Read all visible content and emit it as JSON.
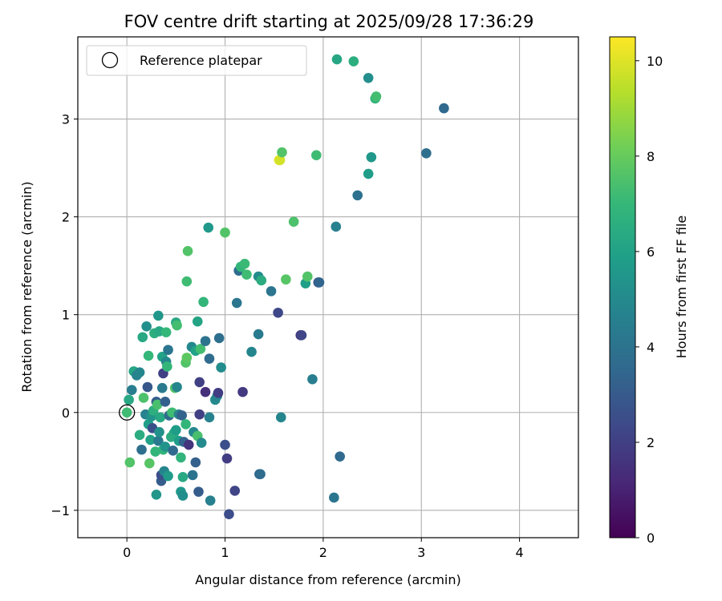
{
  "chart_data": {
    "type": "scatter",
    "title": "FOV centre drift starting at 2025/09/28 17:36:29",
    "xlabel": "Angular distance from reference (arcmin)",
    "ylabel": "Rotation from reference (arcmin)",
    "xlim": [
      -0.5,
      4.6
    ],
    "ylim": [
      -1.28,
      3.84
    ],
    "xticks": [
      0,
      1,
      2,
      3,
      4
    ],
    "yticks": [
      -1,
      0,
      1,
      2,
      3
    ],
    "xtick_labels": [
      "0",
      "1",
      "2",
      "3",
      "4"
    ],
    "ytick_labels": [
      "−1",
      "0",
      "1",
      "2",
      "3"
    ],
    "grid": true,
    "legend": {
      "label": "Reference platepar",
      "position": "upper-left",
      "marker": "open-circle"
    },
    "reference_point": {
      "x": 0,
      "y": 0
    },
    "colorbar": {
      "label": "Hours from first FF file",
      "range": [
        0,
        10.5
      ],
      "ticks": [
        0,
        2,
        4,
        6,
        8,
        10
      ],
      "tick_labels": [
        "0",
        "2",
        "4",
        "6",
        "8",
        "10"
      ],
      "colormap": "viridis",
      "colors": [
        "#440154",
        "#482878",
        "#3e4989",
        "#31688e",
        "#26828e",
        "#1f9e89",
        "#35b779",
        "#6ece58",
        "#b5de2b",
        "#fde725"
      ]
    },
    "points": [
      {
        "x": 0.0,
        "y": 0.0,
        "h": 7.2
      },
      {
        "x": 0.02,
        "y": 0.13,
        "h": 6.3
      },
      {
        "x": 0.03,
        "y": -0.51,
        "h": 7.6
      },
      {
        "x": 0.05,
        "y": 0.23,
        "h": 4.5
      },
      {
        "x": 0.07,
        "y": 0.42,
        "h": 6.2
      },
      {
        "x": 0.1,
        "y": 0.38,
        "h": 4.6
      },
      {
        "x": 0.13,
        "y": 0.41,
        "h": 4.8
      },
      {
        "x": 0.13,
        "y": -0.23,
        "h": 6.5
      },
      {
        "x": 0.15,
        "y": -0.38,
        "h": 3.8
      },
      {
        "x": 0.16,
        "y": 0.77,
        "h": 6.3
      },
      {
        "x": 0.17,
        "y": 0.15,
        "h": 7.5
      },
      {
        "x": 0.19,
        "y": -0.02,
        "h": 4.6
      },
      {
        "x": 0.2,
        "y": 0.88,
        "h": 5.2
      },
      {
        "x": 0.21,
        "y": 0.26,
        "h": 2.9
      },
      {
        "x": 0.22,
        "y": -0.12,
        "h": 5.9
      },
      {
        "x": 0.22,
        "y": 0.58,
        "h": 7.0
      },
      {
        "x": 0.23,
        "y": -0.52,
        "h": 7.7
      },
      {
        "x": 0.24,
        "y": -0.28,
        "h": 6.0
      },
      {
        "x": 0.25,
        "y": -0.04,
        "h": 5.4
      },
      {
        "x": 0.26,
        "y": -0.16,
        "h": 2.6
      },
      {
        "x": 0.27,
        "y": 0.02,
        "h": 6.6
      },
      {
        "x": 0.28,
        "y": 0.81,
        "h": 6.6
      },
      {
        "x": 0.29,
        "y": -0.4,
        "h": 6.9
      },
      {
        "x": 0.3,
        "y": 0.11,
        "h": 3.1
      },
      {
        "x": 0.3,
        "y": -0.84,
        "h": 5.5
      },
      {
        "x": 0.31,
        "y": 0.08,
        "h": 7.4
      },
      {
        "x": 0.32,
        "y": -0.29,
        "h": 4.3
      },
      {
        "x": 0.32,
        "y": 0.99,
        "h": 5.5
      },
      {
        "x": 0.33,
        "y": 0.83,
        "h": 6.3
      },
      {
        "x": 0.33,
        "y": -0.2,
        "h": 5.3
      },
      {
        "x": 0.34,
        "y": -0.05,
        "h": 6.3
      },
      {
        "x": 0.35,
        "y": -0.7,
        "h": 3.1
      },
      {
        "x": 0.35,
        "y": -0.64,
        "h": 2.5
      },
      {
        "x": 0.36,
        "y": 0.25,
        "h": 4.3
      },
      {
        "x": 0.36,
        "y": 0.57,
        "h": 6.0
      },
      {
        "x": 0.37,
        "y": -0.38,
        "h": 6.9
      },
      {
        "x": 0.37,
        "y": 0.4,
        "h": 2.0
      },
      {
        "x": 0.38,
        "y": -0.6,
        "h": 4.8
      },
      {
        "x": 0.39,
        "y": -0.35,
        "h": 5.4
      },
      {
        "x": 0.39,
        "y": 0.11,
        "h": 3.2
      },
      {
        "x": 0.4,
        "y": 0.52,
        "h": 4.9
      },
      {
        "x": 0.4,
        "y": 0.82,
        "h": 7.0
      },
      {
        "x": 0.41,
        "y": 0.47,
        "h": 6.9
      },
      {
        "x": 0.42,
        "y": -0.65,
        "h": 5.7
      },
      {
        "x": 0.42,
        "y": 0.64,
        "h": 4.1
      },
      {
        "x": 0.43,
        "y": -0.03,
        "h": 3.7
      },
      {
        "x": 0.45,
        "y": -0.25,
        "h": 6.5
      },
      {
        "x": 0.46,
        "y": 0.0,
        "h": 7.2
      },
      {
        "x": 0.47,
        "y": -0.39,
        "h": 3.6
      },
      {
        "x": 0.48,
        "y": -0.21,
        "h": 6.4
      },
      {
        "x": 0.49,
        "y": 0.25,
        "h": 7.6
      },
      {
        "x": 0.5,
        "y": -0.18,
        "h": 5.8
      },
      {
        "x": 0.51,
        "y": 0.26,
        "h": 4.8
      },
      {
        "x": 0.5,
        "y": 0.92,
        "h": 6.3
      },
      {
        "x": 0.51,
        "y": 0.89,
        "h": 7.3
      },
      {
        "x": 0.53,
        "y": -0.29,
        "h": 5.8
      },
      {
        "x": 0.53,
        "y": -0.02,
        "h": 4.6
      },
      {
        "x": 0.55,
        "y": -0.81,
        "h": 5.6
      },
      {
        "x": 0.55,
        "y": -0.46,
        "h": 6.8
      },
      {
        "x": 0.56,
        "y": -0.03,
        "h": 3.3
      },
      {
        "x": 0.57,
        "y": -0.66,
        "h": 6.3
      },
      {
        "x": 0.57,
        "y": -0.85,
        "h": 5.2
      },
      {
        "x": 0.58,
        "y": -0.3,
        "h": 3.4
      },
      {
        "x": 0.6,
        "y": -0.12,
        "h": 6.9
      },
      {
        "x": 0.6,
        "y": 0.51,
        "h": 7.6
      },
      {
        "x": 0.61,
        "y": 0.56,
        "h": 7.8
      },
      {
        "x": 0.61,
        "y": 1.34,
        "h": 7.2
      },
      {
        "x": 0.62,
        "y": 1.65,
        "h": 7.6
      },
      {
        "x": 0.63,
        "y": -0.33,
        "h": 1.6
      },
      {
        "x": 0.66,
        "y": 0.67,
        "h": 4.9
      },
      {
        "x": 0.67,
        "y": -0.64,
        "h": 4.0
      },
      {
        "x": 0.68,
        "y": -0.2,
        "h": 4.9
      },
      {
        "x": 0.7,
        "y": -0.51,
        "h": 3.2
      },
      {
        "x": 0.7,
        "y": 0.63,
        "h": 6.0
      },
      {
        "x": 0.72,
        "y": 0.93,
        "h": 6.1
      },
      {
        "x": 0.72,
        "y": -0.24,
        "h": 7.4
      },
      {
        "x": 0.73,
        "y": -0.81,
        "h": 3.1
      },
      {
        "x": 0.74,
        "y": 0.31,
        "h": 2.0
      },
      {
        "x": 0.74,
        "y": -0.02,
        "h": 2.0
      },
      {
        "x": 0.75,
        "y": 0.65,
        "h": 7.3
      },
      {
        "x": 0.76,
        "y": -0.31,
        "h": 5.0
      },
      {
        "x": 0.78,
        "y": 1.13,
        "h": 6.9
      },
      {
        "x": 0.8,
        "y": 0.73,
        "h": 4.0
      },
      {
        "x": 0.8,
        "y": 0.21,
        "h": 1.4
      },
      {
        "x": 0.83,
        "y": 1.89,
        "h": 5.6
      },
      {
        "x": 0.84,
        "y": 0.55,
        "h": 3.7
      },
      {
        "x": 0.84,
        "y": -0.05,
        "h": 4.6
      },
      {
        "x": 0.85,
        "y": -0.9,
        "h": 4.6
      },
      {
        "x": 0.9,
        "y": 0.13,
        "h": 5.0
      },
      {
        "x": 0.92,
        "y": 0.17,
        "h": 4.7
      },
      {
        "x": 0.93,
        "y": 0.2,
        "h": 1.9
      },
      {
        "x": 0.94,
        "y": 0.76,
        "h": 3.8
      },
      {
        "x": 0.96,
        "y": 0.46,
        "h": 5.1
      },
      {
        "x": 1.0,
        "y": 1.84,
        "h": 7.6
      },
      {
        "x": 1.0,
        "y": -0.33,
        "h": 2.6
      },
      {
        "x": 1.02,
        "y": -0.47,
        "h": 1.9
      },
      {
        "x": 1.04,
        "y": -1.04,
        "h": 2.5
      },
      {
        "x": 1.1,
        "y": -0.8,
        "h": 2.2
      },
      {
        "x": 1.12,
        "y": 1.12,
        "h": 4.1
      },
      {
        "x": 1.14,
        "y": 1.45,
        "h": 3.7
      },
      {
        "x": 1.16,
        "y": 1.49,
        "h": 6.9
      },
      {
        "x": 1.18,
        "y": 0.21,
        "h": 1.8
      },
      {
        "x": 1.2,
        "y": 1.52,
        "h": 7.1
      },
      {
        "x": 1.22,
        "y": 1.41,
        "h": 7.2
      },
      {
        "x": 1.27,
        "y": 0.62,
        "h": 4.8
      },
      {
        "x": 1.34,
        "y": 0.8,
        "h": 4.3
      },
      {
        "x": 1.34,
        "y": 1.39,
        "h": 5.1
      },
      {
        "x": 1.35,
        "y": -0.63,
        "h": 3.5
      },
      {
        "x": 1.36,
        "y": -0.63,
        "h": 3.7
      },
      {
        "x": 1.37,
        "y": 1.35,
        "h": 6.5
      },
      {
        "x": 1.47,
        "y": 1.24,
        "h": 4.1
      },
      {
        "x": 1.54,
        "y": 1.02,
        "h": 2.3
      },
      {
        "x": 1.55,
        "y": 2.58,
        "h": 10.2
      },
      {
        "x": 1.56,
        "y": 2.58,
        "h": 9.8
      },
      {
        "x": 1.57,
        "y": -0.05,
        "h": 4.8
      },
      {
        "x": 1.58,
        "y": 2.66,
        "h": 7.6
      },
      {
        "x": 1.62,
        "y": 1.36,
        "h": 7.7
      },
      {
        "x": 1.7,
        "y": 1.95,
        "h": 7.5
      },
      {
        "x": 1.77,
        "y": 0.79,
        "h": 1.6
      },
      {
        "x": 1.78,
        "y": 0.79,
        "h": 2.2
      },
      {
        "x": 1.82,
        "y": 1.32,
        "h": 5.9
      },
      {
        "x": 1.84,
        "y": 1.39,
        "h": 7.6
      },
      {
        "x": 1.89,
        "y": 0.34,
        "h": 4.5
      },
      {
        "x": 1.93,
        "y": 2.63,
        "h": 7.2
      },
      {
        "x": 1.95,
        "y": 1.33,
        "h": 2.6
      },
      {
        "x": 1.96,
        "y": 1.33,
        "h": 3.4
      },
      {
        "x": 2.11,
        "y": -0.87,
        "h": 4.1
      },
      {
        "x": 2.13,
        "y": 1.9,
        "h": 4.6
      },
      {
        "x": 2.14,
        "y": 3.61,
        "h": 6.2
      },
      {
        "x": 2.17,
        "y": -0.45,
        "h": 3.6
      },
      {
        "x": 2.31,
        "y": 3.59,
        "h": 6.6
      },
      {
        "x": 2.35,
        "y": 2.22,
        "h": 3.9
      },
      {
        "x": 2.46,
        "y": 3.42,
        "h": 5.2
      },
      {
        "x": 2.46,
        "y": 2.44,
        "h": 5.8
      },
      {
        "x": 2.49,
        "y": 2.61,
        "h": 5.6
      },
      {
        "x": 2.53,
        "y": 3.21,
        "h": 6.8
      },
      {
        "x": 2.54,
        "y": 3.23,
        "h": 7.3
      },
      {
        "x": 3.05,
        "y": 2.65,
        "h": 3.8
      },
      {
        "x": 3.23,
        "y": 3.11,
        "h": 3.6
      }
    ]
  }
}
